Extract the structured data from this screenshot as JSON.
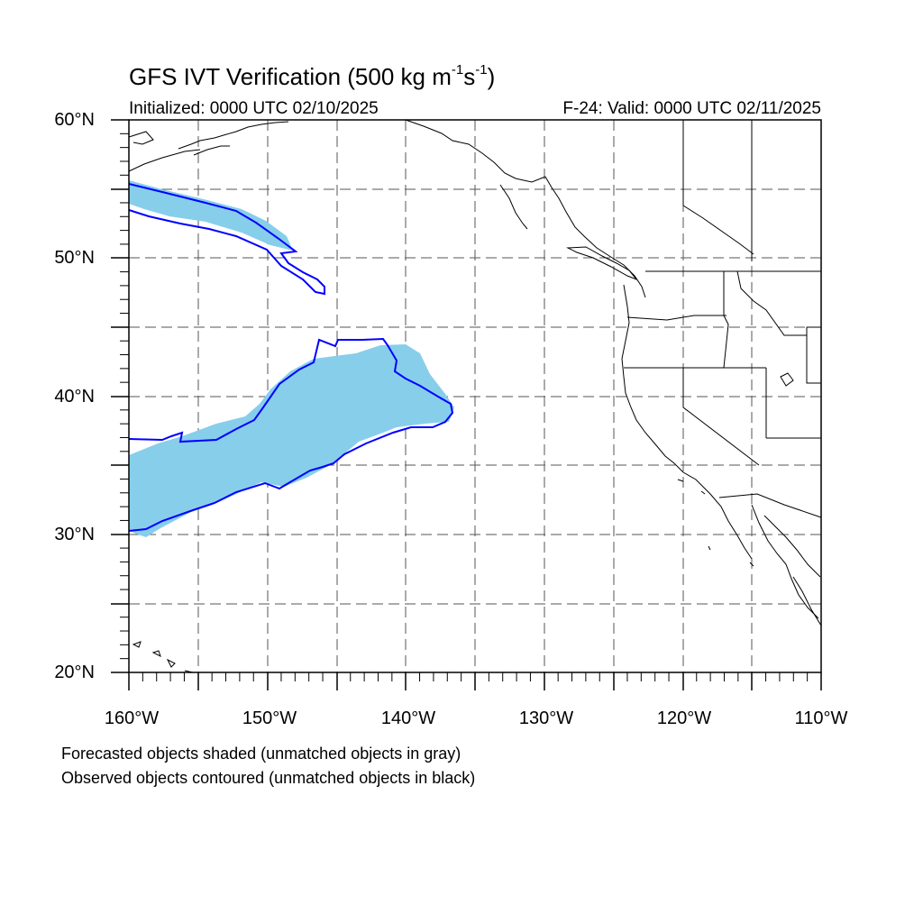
{
  "title": {
    "prefix": "GFS IVT Verification (500 kg m",
    "exp1": "-1",
    "mid": "s",
    "exp2": "-1",
    "suffix": ")"
  },
  "initialized": "Initialized: 0000 UTC 02/10/2025",
  "valid": "F-24: Valid: 0000 UTC 02/11/2025",
  "lat_labels": [
    "60°N",
    "50°N",
    "40°N",
    "30°N",
    "20°N"
  ],
  "lon_labels": [
    "160°W",
    "150°W",
    "140°W",
    "130°W",
    "120°W",
    "110°W"
  ],
  "notes": [
    "Forecasted objects shaded (unmatched objects in gray)",
    "Observed objects contoured (unmatched objects in black)"
  ],
  "colors": {
    "forecast_fill": "#87ceeb",
    "observed_contour": "#0000ff",
    "coastline": "#000000",
    "grid": "#555555"
  },
  "map": {
    "projection": "cylindrical-equidistant",
    "lon_range": [
      -160,
      -110
    ],
    "lat_range": [
      20,
      60
    ],
    "grid": "dashed every 5 degrees"
  }
}
